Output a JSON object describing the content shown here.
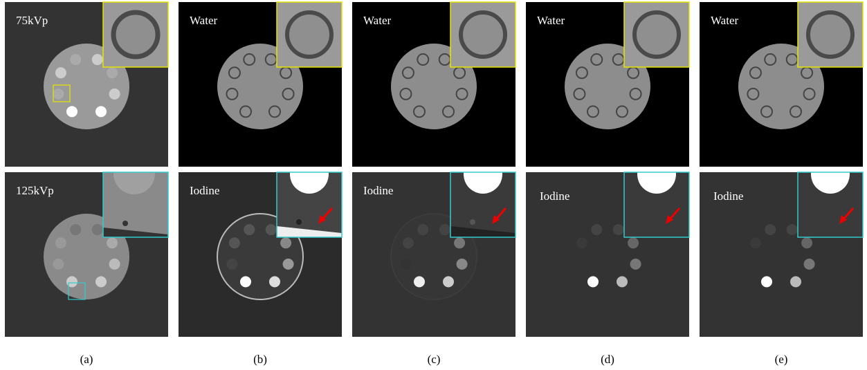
{
  "columns": [
    {
      "caption": "(a)",
      "top_label": "75kVp",
      "bottom_label": "125kVp"
    },
    {
      "caption": "(b)",
      "top_label": "Water",
      "bottom_label": "Iodine"
    },
    {
      "caption": "(c)",
      "top_label": "Water",
      "bottom_label": "Iodine"
    },
    {
      "caption": "(d)",
      "top_label": "Water",
      "bottom_label": "Iodine"
    },
    {
      "caption": "(e)",
      "top_label": "Water",
      "bottom_label": "Iodine"
    }
  ]
}
